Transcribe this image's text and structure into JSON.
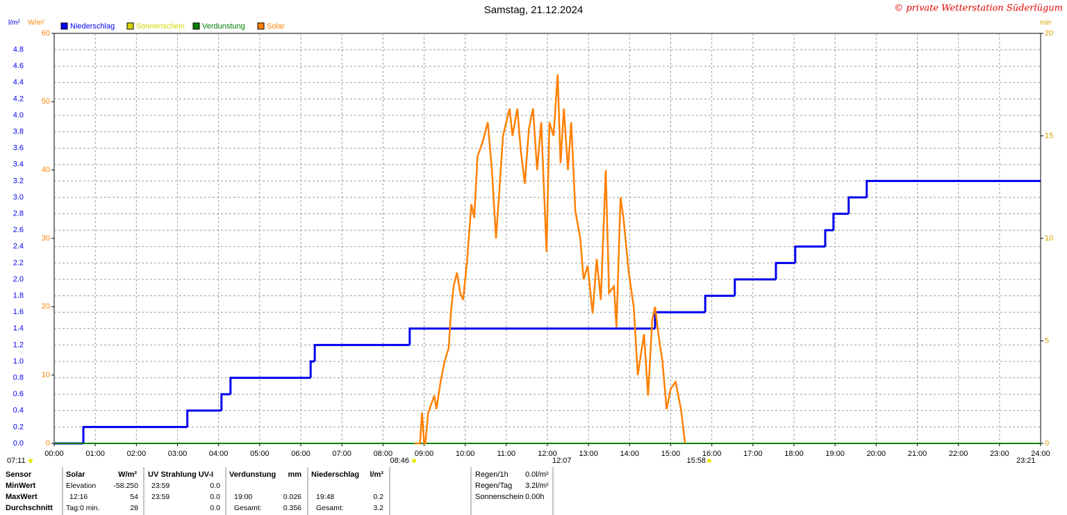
{
  "chart_data": {
    "type": "line",
    "title": "Samstag, 21.12.2024",
    "credit": "© private Wetterstation Süderlügum",
    "y_unit": "l/m²",
    "y2_unit": "W/m²",
    "y3_unit": "min",
    "xlim": [
      0,
      24
    ],
    "xticks": [
      {
        "value": 0,
        "label": "00:00"
      },
      {
        "value": 1,
        "label": "01:00"
      },
      {
        "value": 2,
        "label": "02:00"
      },
      {
        "value": 3,
        "label": "03:00"
      },
      {
        "value": 4,
        "label": "04:00"
      },
      {
        "value": 5,
        "label": "05:00"
      },
      {
        "value": 6,
        "label": "06:00"
      },
      {
        "value": 7,
        "label": "07:00"
      },
      {
        "value": 8,
        "label": "08:00"
      },
      {
        "value": 9,
        "label": "09:00"
      },
      {
        "value": 10,
        "label": "10:00"
      },
      {
        "value": 11,
        "label": "11:00"
      },
      {
        "value": 12,
        "label": "12:00"
      },
      {
        "value": 13,
        "label": "13:00"
      },
      {
        "value": 14,
        "label": "14:00"
      },
      {
        "value": 15,
        "label": "15:00"
      },
      {
        "value": 16,
        "label": "16:00"
      },
      {
        "value": 17,
        "label": "17:00"
      },
      {
        "value": 18,
        "label": "18:00"
      },
      {
        "value": 19,
        "label": "19:00"
      },
      {
        "value": 20,
        "label": "20:00"
      },
      {
        "value": 21,
        "label": "21:00"
      },
      {
        "value": 22,
        "label": "22:00"
      },
      {
        "value": 23,
        "label": "23:00"
      },
      {
        "value": 24,
        "label": "24:00"
      }
    ],
    "ylim": [
      0,
      5
    ],
    "yticks": [
      {
        "value": 0,
        "label": "0.0"
      },
      0.2,
      0.4,
      0.6,
      0.8,
      {
        "value": 1,
        "label": "1.0"
      },
      1.2,
      1.4,
      1.6,
      1.8,
      {
        "value": 2,
        "label": "2.0"
      },
      2.2,
      2.4,
      2.6,
      2.8,
      {
        "value": 3,
        "label": "3.0"
      },
      3.2,
      3.4,
      3.6,
      3.8,
      {
        "value": 4,
        "label": "4.0"
      },
      4.2,
      4.4,
      4.6,
      4.8
    ],
    "y2lim": [
      0,
      60
    ],
    "y2ticks": [
      0,
      10,
      20,
      30,
      40,
      50,
      60
    ],
    "y3lim": [
      0,
      20
    ],
    "y3ticks": [
      0,
      5,
      10,
      15,
      20
    ],
    "grid": true,
    "series": [
      {
        "name": "Niederschlag",
        "color": "#0000ee",
        "axis": "y",
        "step": true,
        "x": [
          0,
          0.71,
          3.24,
          4.07,
          4.29,
          6.24,
          6.34,
          8.65,
          14.62,
          15.84,
          16.56,
          17.56,
          18.03,
          18.76,
          18.96,
          19.33,
          19.77,
          24
        ],
        "values": [
          0,
          0.2,
          0.4,
          0.6,
          0.8,
          1.0,
          1.2,
          1.4,
          1.6,
          1.8,
          2.0,
          2.2,
          2.4,
          2.6,
          2.8,
          3.0,
          3.2,
          3.2
        ]
      },
      {
        "name": "Sonnenschein",
        "color": "#d4d400",
        "axis": "y3",
        "x": [
          0,
          24
        ],
        "values": [
          0,
          0
        ]
      },
      {
        "name": "Verdunstung",
        "color": "#008000",
        "axis": "y",
        "x": [
          0,
          24
        ],
        "values": [
          0,
          0
        ]
      },
      {
        "name": "Solar",
        "color": "#ff8000",
        "axis": "y2",
        "x": [
          8.77,
          8.9,
          8.95,
          9.0,
          9.03,
          9.1,
          9.25,
          9.3,
          9.4,
          9.5,
          9.6,
          9.65,
          9.72,
          9.8,
          9.88,
          9.95,
          10.05,
          10.15,
          10.22,
          10.3,
          10.42,
          10.55,
          10.65,
          10.75,
          10.82,
          10.92,
          11.08,
          11.15,
          11.27,
          11.35,
          11.45,
          11.55,
          11.65,
          11.75,
          11.85,
          11.98,
          12.05,
          12.15,
          12.25,
          12.32,
          12.4,
          12.5,
          12.58,
          12.68,
          12.8,
          12.88,
          12.98,
          13.1,
          13.2,
          13.3,
          13.42,
          13.5,
          13.62,
          13.68,
          13.78,
          13.85,
          13.98,
          14.1,
          14.2,
          14.35,
          14.45,
          14.55,
          14.62,
          14.7,
          14.8,
          14.9,
          15.0,
          15.12,
          15.25,
          15.35
        ],
        "values": [
          0,
          0,
          4.5,
          0,
          0,
          4.5,
          7,
          5,
          9,
          12,
          14,
          19,
          23,
          25,
          22,
          21,
          27,
          35,
          33,
          42,
          44,
          47,
          40,
          30,
          36,
          45,
          49,
          45,
          49,
          43,
          38,
          46,
          49,
          40,
          47,
          28,
          47,
          45,
          54,
          41,
          49,
          40,
          47,
          34,
          30,
          24,
          26,
          19,
          27,
          21,
          40,
          22,
          23,
          17,
          36,
          33,
          25,
          20,
          10,
          16,
          7,
          18,
          20,
          16,
          12,
          5,
          8,
          9,
          5,
          0
        ]
      }
    ]
  },
  "markers": [
    "07:11",
    "08:46",
    "12:07",
    "15:58",
    "23:21"
  ],
  "stats": {
    "header": [
      "Sensor",
      "Solar",
      "W/m²",
      "UV Strahlung UV-I",
      "Verdunstung",
      "mm",
      "Niederschlag",
      "l/m²"
    ],
    "rows": [
      [
        "MinWert",
        "Elevation",
        "-58.250",
        "23:59",
        "0.0",
        null,
        null,
        null,
        null
      ],
      [
        "MaxWert",
        "12:16",
        "54",
        "23:59",
        "0.0",
        "19:00",
        "0.026",
        "19:48",
        "0.2"
      ],
      [
        "Durchschnitt",
        "Tag:0 min.",
        "28",
        null,
        "0.0",
        "Gesamt:",
        "0.356",
        "Gesamt:",
        "3.2"
      ]
    ],
    "summary": [
      [
        "Regen/1h",
        "0.0l/m²"
      ],
      [
        "Regen/Tag",
        "3.2l/m²"
      ],
      [
        "Sonnenschein",
        "0.00h"
      ]
    ]
  }
}
